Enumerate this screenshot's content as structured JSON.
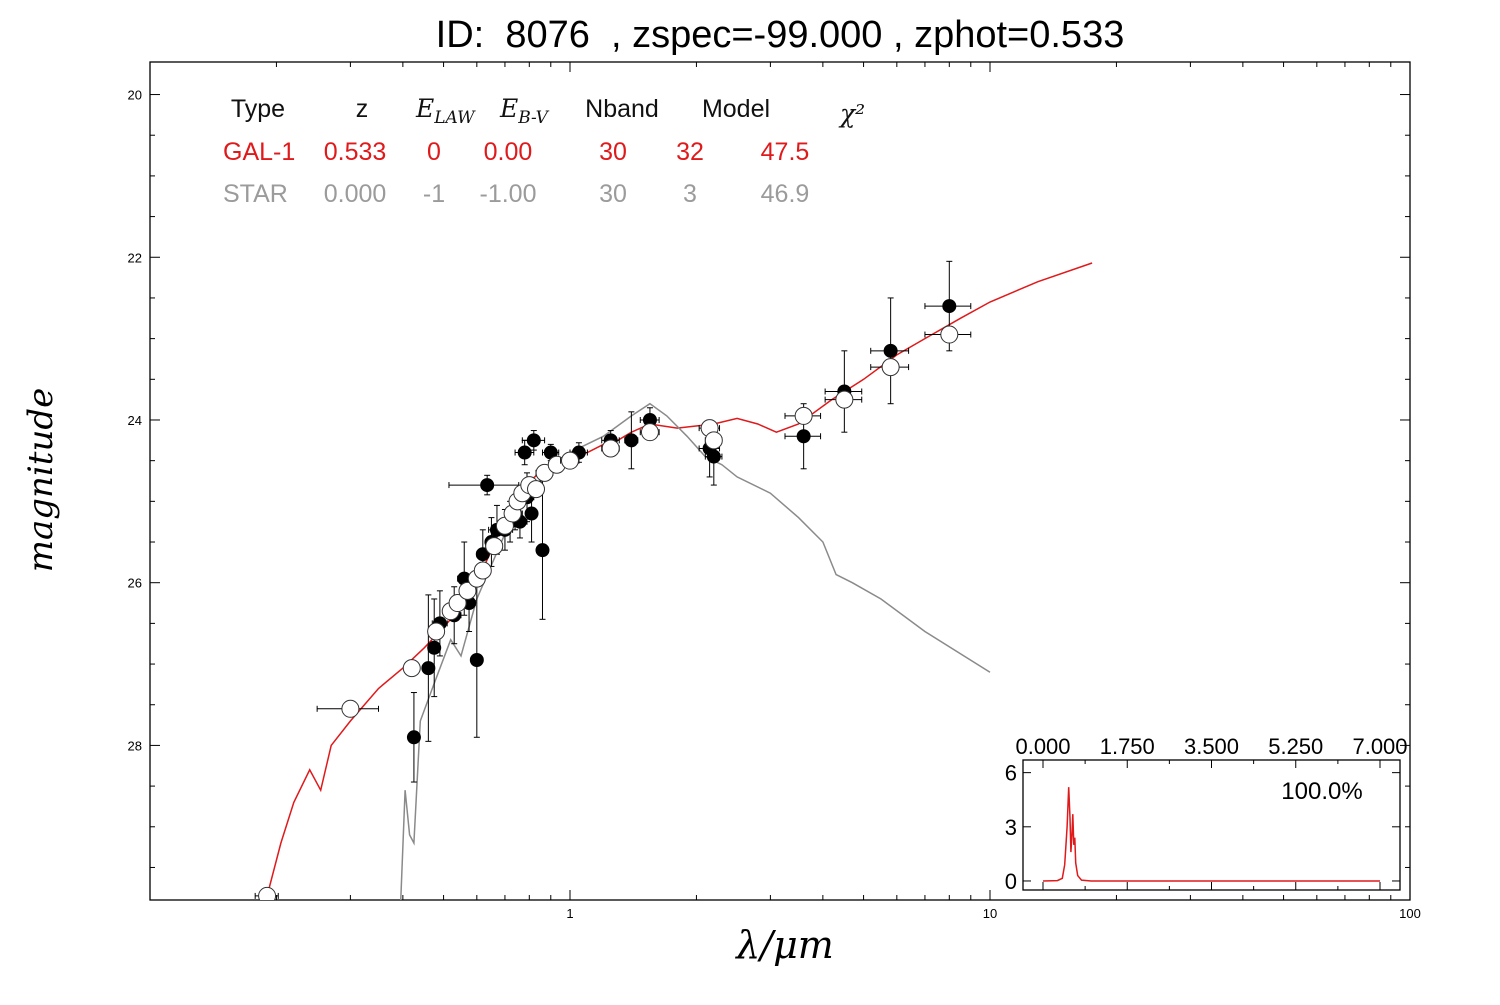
{
  "title": "ID:  8076  , zspec=-99.000 , zphot=0.533",
  "colors": {
    "gal": "#e0191b",
    "star": "#9b9b9b",
    "star_line": "#8a8a8a",
    "axis": "#000000"
  },
  "table": {
    "headers": [
      "Type",
      "z",
      "E_LAW",
      "E_B-V",
      "Nband",
      "Model",
      "χ²"
    ],
    "rows": [
      {
        "type": "GAL-1",
        "cells": [
          "0.533",
          "0",
          "0.00",
          "30",
          "32",
          "47.5"
        ],
        "color": "red"
      },
      {
        "type": "STAR",
        "cells": [
          "0.000",
          "-1",
          "-1.00",
          "30",
          "3",
          "46.9"
        ],
        "color": "gray"
      }
    ]
  },
  "chart_data": {
    "type": "scatter",
    "xlabel": "λ/μm",
    "ylabel": "magnitude",
    "xscale": "log",
    "xlim": [
      0.1,
      100
    ],
    "ylim": [
      29.9,
      19.6
    ],
    "xticks": [
      "1",
      "10",
      "100"
    ],
    "yticks": [
      "20",
      "22",
      "24",
      "26",
      "28"
    ],
    "series": [
      {
        "name": "GAL-1",
        "kind": "line",
        "color": "red",
        "points": [
          [
            0.19,
            29.85
          ],
          [
            0.205,
            29.2
          ],
          [
            0.22,
            28.7
          ],
          [
            0.24,
            28.3
          ],
          [
            0.255,
            28.55
          ],
          [
            0.27,
            28.0
          ],
          [
            0.3,
            27.7
          ],
          [
            0.35,
            27.3
          ],
          [
            0.4,
            27.05
          ],
          [
            0.45,
            26.8
          ],
          [
            0.5,
            26.55
          ],
          [
            0.55,
            26.3
          ],
          [
            0.6,
            26.0
          ],
          [
            0.65,
            25.6
          ],
          [
            0.7,
            25.2
          ],
          [
            0.75,
            24.95
          ],
          [
            0.8,
            24.75
          ],
          [
            0.9,
            24.55
          ],
          [
            1.0,
            24.45
          ],
          [
            1.1,
            24.4
          ],
          [
            1.2,
            24.3
          ],
          [
            1.3,
            24.25
          ],
          [
            1.4,
            24.15
          ],
          [
            1.55,
            24.05
          ],
          [
            1.8,
            24.1
          ],
          [
            2.2,
            24.05
          ],
          [
            2.5,
            23.98
          ],
          [
            2.8,
            24.05
          ],
          [
            3.1,
            24.15
          ],
          [
            3.5,
            24.05
          ],
          [
            4.2,
            23.75
          ],
          [
            5.0,
            23.5
          ],
          [
            6.0,
            23.2
          ],
          [
            7.0,
            23.0
          ],
          [
            8.5,
            22.75
          ],
          [
            10.0,
            22.55
          ],
          [
            13.0,
            22.3
          ],
          [
            17.5,
            22.07
          ]
        ]
      },
      {
        "name": "STAR",
        "kind": "line",
        "color": "gray",
        "points": [
          [
            0.395,
            29.95
          ],
          [
            0.405,
            28.55
          ],
          [
            0.415,
            29.1
          ],
          [
            0.425,
            29.2
          ],
          [
            0.44,
            27.7
          ],
          [
            0.47,
            27.3
          ],
          [
            0.52,
            26.7
          ],
          [
            0.55,
            26.9
          ],
          [
            0.6,
            26.2
          ],
          [
            0.7,
            25.4
          ],
          [
            0.8,
            24.9
          ],
          [
            0.9,
            24.65
          ],
          [
            1.0,
            24.4
          ],
          [
            1.2,
            24.2
          ],
          [
            1.4,
            23.95
          ],
          [
            1.55,
            23.8
          ],
          [
            1.7,
            23.95
          ],
          [
            1.9,
            24.2
          ],
          [
            2.1,
            24.45
          ],
          [
            2.3,
            24.55
          ],
          [
            2.5,
            24.7
          ],
          [
            3.0,
            24.9
          ],
          [
            3.5,
            25.2
          ],
          [
            4.0,
            25.5
          ],
          [
            4.3,
            25.9
          ],
          [
            4.7,
            26.0
          ],
          [
            5.5,
            26.2
          ],
          [
            7.0,
            26.6
          ],
          [
            10.0,
            27.1
          ]
        ]
      },
      {
        "name": "observed",
        "kind": "points",
        "marker": "filled",
        "points": [
          {
            "x": 0.425,
            "y": 27.9,
            "xerr": 0.01,
            "yerr": 0.55
          },
          {
            "x": 0.46,
            "y": 27.05,
            "xerr": 0.01,
            "yerr": 0.9
          },
          {
            "x": 0.475,
            "y": 26.8,
            "xerr": 0.015,
            "yerr": 0.6
          },
          {
            "x": 0.49,
            "y": 26.5,
            "xerr": 0.02,
            "yerr": 0.4
          },
          {
            "x": 0.53,
            "y": 26.4,
            "xerr": 0.02,
            "yerr": 0.35
          },
          {
            "x": 0.56,
            "y": 25.95,
            "xerr": 0.02,
            "yerr": 0.45
          },
          {
            "x": 0.575,
            "y": 26.25,
            "xerr": 0.02,
            "yerr": 0.35
          },
          {
            "x": 0.6,
            "y": 26.95,
            "xerr": 0.01,
            "yerr": 0.95
          },
          {
            "x": 0.62,
            "y": 25.65,
            "xerr": 0.02,
            "yerr": 0.3
          },
          {
            "x": 0.635,
            "y": 24.8,
            "xerr": 0.12,
            "yerr": 0.12
          },
          {
            "x": 0.65,
            "y": 25.5,
            "xerr": 0.02,
            "yerr": 0.3
          },
          {
            "x": 0.67,
            "y": 25.35,
            "xerr": 0.03,
            "yerr": 0.3
          },
          {
            "x": 0.7,
            "y": 25.35,
            "xerr": 0.03,
            "yerr": 0.25
          },
          {
            "x": 0.72,
            "y": 25.25,
            "xerr": 0.03,
            "yerr": 0.25
          },
          {
            "x": 0.74,
            "y": 25.15,
            "xerr": 0.03,
            "yerr": 0.2
          },
          {
            "x": 0.76,
            "y": 25.25,
            "xerr": 0.03,
            "yerr": 0.2
          },
          {
            "x": 0.78,
            "y": 24.4,
            "xerr": 0.04,
            "yerr": 0.15
          },
          {
            "x": 0.79,
            "y": 24.95,
            "xerr": 0.03,
            "yerr": 0.3
          },
          {
            "x": 0.81,
            "y": 25.15,
            "xerr": 0.02,
            "yerr": 0.35
          },
          {
            "x": 0.82,
            "y": 24.25,
            "xerr": 0.05,
            "yerr": 0.12
          },
          {
            "x": 0.86,
            "y": 25.6,
            "xerr": 0.01,
            "yerr": 0.85
          },
          {
            "x": 0.9,
            "y": 24.4,
            "xerr": 0.04,
            "yerr": 0.1
          },
          {
            "x": 1.05,
            "y": 24.4,
            "xerr": 0.05,
            "yerr": 0.12
          },
          {
            "x": 1.25,
            "y": 24.25,
            "xerr": 0.06,
            "yerr": 0.12
          },
          {
            "x": 1.4,
            "y": 24.25,
            "xerr": 0.05,
            "yerr": 0.35
          },
          {
            "x": 1.55,
            "y": 24.0,
            "xerr": 0.08,
            "yerr": 0.15
          },
          {
            "x": 2.15,
            "y": 24.35,
            "xerr": 0.12,
            "yerr": 0.35
          },
          {
            "x": 2.2,
            "y": 24.45,
            "xerr": 0.1,
            "yerr": 0.35
          },
          {
            "x": 3.6,
            "y": 24.2,
            "xerr": 0.35,
            "yerr": 0.4
          },
          {
            "x": 4.5,
            "y": 23.65,
            "xerr": 0.45,
            "yerr": 0.5
          },
          {
            "x": 5.8,
            "y": 23.15,
            "xerr": 0.6,
            "yerr": 0.65
          },
          {
            "x": 8.0,
            "y": 22.6,
            "xerr": 1.0,
            "yerr": 0.55
          }
        ]
      },
      {
        "name": "model",
        "kind": "points",
        "marker": "open",
        "points": [
          {
            "x": 0.19,
            "y": 29.85,
            "xerr": 0.012,
            "yerr": 0
          },
          {
            "x": 0.3,
            "y": 27.55,
            "xerr": 0.05,
            "yerr": 0
          },
          {
            "x": 0.42,
            "y": 27.05,
            "xerr": 0.012,
            "yerr": 0
          },
          {
            "x": 0.48,
            "y": 26.6,
            "xerr": 0.02,
            "yerr": 0
          },
          {
            "x": 0.52,
            "y": 26.35,
            "xerr": 0.02,
            "yerr": 0
          },
          {
            "x": 0.54,
            "y": 26.25,
            "xerr": 0.02,
            "yerr": 0
          },
          {
            "x": 0.57,
            "y": 26.1,
            "xerr": 0.02,
            "yerr": 0
          },
          {
            "x": 0.6,
            "y": 25.95,
            "xerr": 0.02,
            "yerr": 0
          },
          {
            "x": 0.62,
            "y": 25.85,
            "xerr": 0.02,
            "yerr": 0
          },
          {
            "x": 0.66,
            "y": 25.55,
            "xerr": 0.03,
            "yerr": 0
          },
          {
            "x": 0.7,
            "y": 25.3,
            "xerr": 0.03,
            "yerr": 0
          },
          {
            "x": 0.73,
            "y": 25.15,
            "xerr": 0.03,
            "yerr": 0
          },
          {
            "x": 0.75,
            "y": 25.0,
            "xerr": 0.03,
            "yerr": 0
          },
          {
            "x": 0.77,
            "y": 24.9,
            "xerr": 0.03,
            "yerr": 0
          },
          {
            "x": 0.8,
            "y": 24.8,
            "xerr": 0.03,
            "yerr": 0
          },
          {
            "x": 0.83,
            "y": 24.85,
            "xerr": 0.03,
            "yerr": 0
          },
          {
            "x": 0.87,
            "y": 24.65,
            "xerr": 0.04,
            "yerr": 0
          },
          {
            "x": 0.93,
            "y": 24.55,
            "xerr": 0.04,
            "yerr": 0
          },
          {
            "x": 1.0,
            "y": 24.5,
            "xerr": 0.05,
            "yerr": 0
          },
          {
            "x": 1.25,
            "y": 24.35,
            "xerr": 0.06,
            "yerr": 0
          },
          {
            "x": 1.55,
            "y": 24.15,
            "xerr": 0.08,
            "yerr": 0
          },
          {
            "x": 2.15,
            "y": 24.1,
            "xerr": 0.12,
            "yerr": 0
          },
          {
            "x": 2.2,
            "y": 24.25,
            "xerr": 0.1,
            "yerr": 0
          },
          {
            "x": 3.6,
            "y": 23.95,
            "xerr": 0.35,
            "yerr": 0
          },
          {
            "x": 4.5,
            "y": 23.75,
            "xerr": 0.45,
            "yerr": 0
          },
          {
            "x": 5.8,
            "y": 23.35,
            "xerr": 0.6,
            "yerr": 0
          },
          {
            "x": 8.0,
            "y": 22.95,
            "xerr": 1.0,
            "yerr": 0
          }
        ]
      }
    ],
    "inset": {
      "type": "line",
      "color": "red",
      "xlim": [
        0,
        7.0
      ],
      "ylim": [
        -0.5,
        6.7
      ],
      "xticks": [
        "0.000",
        "1.750",
        "3.500",
        "5.250",
        "7.000"
      ],
      "yticks": [
        "0",
        "3",
        "6"
      ],
      "label": "100.0%",
      "points": [
        [
          0.0,
          0.0
        ],
        [
          0.3,
          0.02
        ],
        [
          0.4,
          0.15
        ],
        [
          0.45,
          0.9
        ],
        [
          0.5,
          3.0
        ],
        [
          0.533,
          5.2
        ],
        [
          0.56,
          3.5
        ],
        [
          0.58,
          1.6
        ],
        [
          0.6,
          2.5
        ],
        [
          0.62,
          3.7
        ],
        [
          0.64,
          2.0
        ],
        [
          0.66,
          2.4
        ],
        [
          0.68,
          1.0
        ],
        [
          0.72,
          0.3
        ],
        [
          0.8,
          0.05
        ],
        [
          1.0,
          0.0
        ],
        [
          7.0,
          0.0
        ]
      ]
    }
  }
}
